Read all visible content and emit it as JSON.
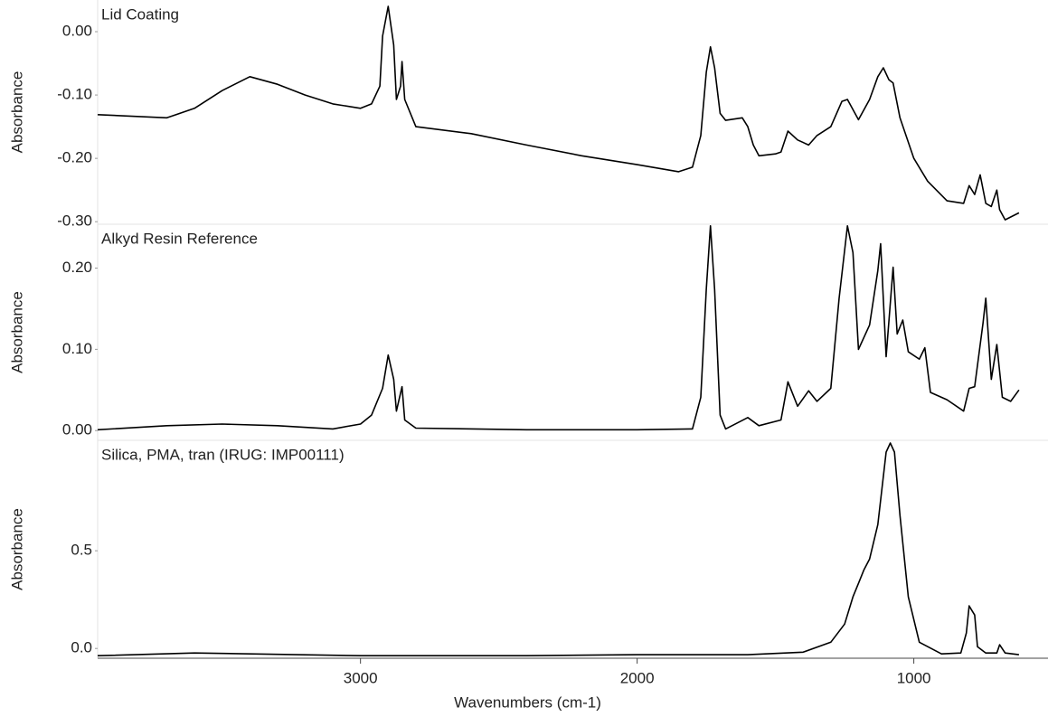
{
  "chart_data": [
    {
      "type": "line",
      "title": "Lid Coating",
      "ylabel": "Absorbance",
      "color": "#000000",
      "xlim": [
        3950,
        515
      ],
      "ylim": [
        -0.304,
        0.05
      ],
      "yticks": [
        {
          "value": 0,
          "label": "0.00"
        },
        {
          "value": -0.1,
          "label": "-0.10"
        },
        {
          "value": -0.2,
          "label": "-0.20"
        },
        {
          "value": -0.3,
          "label": "-0.30"
        }
      ],
      "x": [
        3950,
        3700,
        3600,
        3500,
        3400,
        3300,
        3200,
        3100,
        3000,
        2960,
        2930,
        2920,
        2900,
        2880,
        2870,
        2855,
        2850,
        2840,
        2800,
        2600,
        2400,
        2200,
        2000,
        1850,
        1800,
        1770,
        1750,
        1735,
        1720,
        1700,
        1680,
        1620,
        1600,
        1580,
        1560,
        1500,
        1480,
        1455,
        1420,
        1380,
        1350,
        1300,
        1260,
        1240,
        1200,
        1160,
        1130,
        1110,
        1090,
        1075,
        1050,
        1000,
        950,
        880,
        820,
        800,
        780,
        760,
        740,
        720,
        700,
        690,
        670,
        620
      ],
      "values": [
        -0.131,
        -0.136,
        -0.121,
        -0.093,
        -0.071,
        -0.083,
        -0.1,
        -0.114,
        -0.121,
        -0.114,
        -0.086,
        -0.007,
        0.04,
        -0.021,
        -0.107,
        -0.086,
        -0.047,
        -0.107,
        -0.15,
        -0.161,
        -0.179,
        -0.196,
        -0.21,
        -0.221,
        -0.214,
        -0.164,
        -0.064,
        -0.024,
        -0.057,
        -0.129,
        -0.14,
        -0.136,
        -0.15,
        -0.179,
        -0.196,
        -0.193,
        -0.19,
        -0.157,
        -0.171,
        -0.179,
        -0.164,
        -0.15,
        -0.11,
        -0.107,
        -0.139,
        -0.107,
        -0.071,
        -0.057,
        -0.076,
        -0.081,
        -0.136,
        -0.2,
        -0.236,
        -0.267,
        -0.271,
        -0.243,
        -0.257,
        -0.226,
        -0.271,
        -0.276,
        -0.25,
        -0.281,
        -0.297,
        -0.286
      ]
    },
    {
      "type": "line",
      "title": "Alkyd Resin Reference",
      "ylabel": "Absorbance",
      "color": "#000000",
      "xlim": [
        3950,
        515
      ],
      "ylim": [
        -0.012,
        0.254
      ],
      "yticks": [
        {
          "value": 0,
          "label": "0.00"
        },
        {
          "value": 0.1,
          "label": "0.10"
        },
        {
          "value": 0.2,
          "label": "0.20"
        }
      ],
      "x": [
        3950,
        3700,
        3500,
        3300,
        3100,
        3000,
        2960,
        2920,
        2900,
        2880,
        2870,
        2850,
        2840,
        2800,
        2400,
        2000,
        1800,
        1770,
        1750,
        1735,
        1720,
        1700,
        1680,
        1600,
        1560,
        1480,
        1455,
        1420,
        1380,
        1350,
        1300,
        1270,
        1240,
        1220,
        1200,
        1160,
        1130,
        1120,
        1100,
        1075,
        1060,
        1040,
        1020,
        980,
        960,
        940,
        880,
        820,
        800,
        780,
        750,
        740,
        720,
        700,
        680,
        650,
        620
      ],
      "values": [
        0.001,
        0.006,
        0.008,
        0.006,
        0.002,
        0.008,
        0.019,
        0.052,
        0.093,
        0.063,
        0.024,
        0.054,
        0.013,
        0.003,
        0.001,
        0.001,
        0.002,
        0.041,
        0.174,
        0.252,
        0.174,
        0.019,
        0.002,
        0.016,
        0.006,
        0.013,
        0.06,
        0.03,
        0.049,
        0.036,
        0.052,
        0.163,
        0.252,
        0.219,
        0.1,
        0.13,
        0.197,
        0.23,
        0.091,
        0.201,
        0.119,
        0.136,
        0.097,
        0.088,
        0.102,
        0.047,
        0.038,
        0.024,
        0.052,
        0.054,
        0.132,
        0.163,
        0.063,
        0.106,
        0.041,
        0.036,
        0.05
      ]
    },
    {
      "type": "line",
      "title": "Silica, PMA, tran (IRUG: IMP00111)",
      "ylabel": "Absorbance",
      "xlabel": "Wavenumbers (cm-1)",
      "color": "#000000",
      "xlim": [
        3950,
        515
      ],
      "ylim": [
        -0.05,
        1.065
      ],
      "yticks": [
        {
          "value": 0,
          "label": "0.0"
        },
        0.5
      ],
      "xticks": [
        3000,
        2000,
        1000
      ],
      "x": [
        3950,
        3600,
        3000,
        2400,
        2000,
        1600,
        1400,
        1300,
        1250,
        1220,
        1200,
        1180,
        1160,
        1130,
        1100,
        1085,
        1070,
        1050,
        1020,
        980,
        900,
        830,
        810,
        800,
        790,
        780,
        770,
        740,
        700,
        690,
        670,
        620
      ],
      "values": [
        -0.037,
        -0.023,
        -0.037,
        -0.037,
        -0.032,
        -0.032,
        -0.019,
        0.032,
        0.125,
        0.264,
        0.333,
        0.403,
        0.458,
        0.634,
        1.005,
        1.051,
        1.005,
        0.681,
        0.264,
        0.032,
        -0.028,
        -0.023,
        0.079,
        0.218,
        0.194,
        0.171,
        0.009,
        -0.023,
        -0.023,
        0.019,
        -0.023,
        -0.032
      ]
    }
  ]
}
